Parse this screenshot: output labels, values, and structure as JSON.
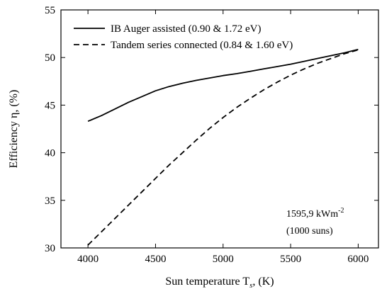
{
  "chart_data": {
    "type": "line",
    "title": "",
    "xlabel": "Sun temperature T",
    "xlabel_sub": "s",
    "xlabel_unit": ", (K)",
    "ylabel": "Efficiency η, (%)",
    "xlim": [
      3800,
      6150
    ],
    "ylim": [
      30,
      55
    ],
    "xticks": [
      4000,
      4500,
      5000,
      5500,
      6000
    ],
    "yticks": [
      30,
      35,
      40,
      45,
      50,
      55
    ],
    "grid": false,
    "legend_position": "top-left",
    "series": [
      {
        "name": "IB Auger assisted (0.90 & 1.72 eV)",
        "style": "solid",
        "x": [
          4000,
          4100,
          4200,
          4300,
          4400,
          4500,
          4600,
          4700,
          4800,
          4900,
          5000,
          5100,
          5200,
          5300,
          5400,
          5500,
          5600,
          5700,
          5800,
          5900,
          6000
        ],
        "y": [
          43.3,
          43.9,
          44.6,
          45.3,
          45.9,
          46.5,
          46.95,
          47.3,
          47.6,
          47.85,
          48.1,
          48.3,
          48.55,
          48.8,
          49.05,
          49.3,
          49.6,
          49.9,
          50.2,
          50.5,
          50.85
        ]
      },
      {
        "name": "Tandem series connected (0.84 & 1.60 eV)",
        "style": "dashed",
        "x": [
          4000,
          4100,
          4200,
          4300,
          4400,
          4500,
          4600,
          4700,
          4800,
          4900,
          5000,
          5100,
          5200,
          5300,
          5400,
          5500,
          5600,
          5700,
          5800,
          5900,
          6000
        ],
        "y": [
          30.3,
          31.7,
          33.1,
          34.5,
          35.9,
          37.3,
          38.7,
          40.0,
          41.3,
          42.55,
          43.7,
          44.75,
          45.7,
          46.6,
          47.4,
          48.15,
          48.8,
          49.4,
          49.9,
          50.4,
          50.8
        ]
      }
    ],
    "annotations": [
      "1595,9 kWm",
      "-2",
      "(1000 suns)"
    ]
  }
}
